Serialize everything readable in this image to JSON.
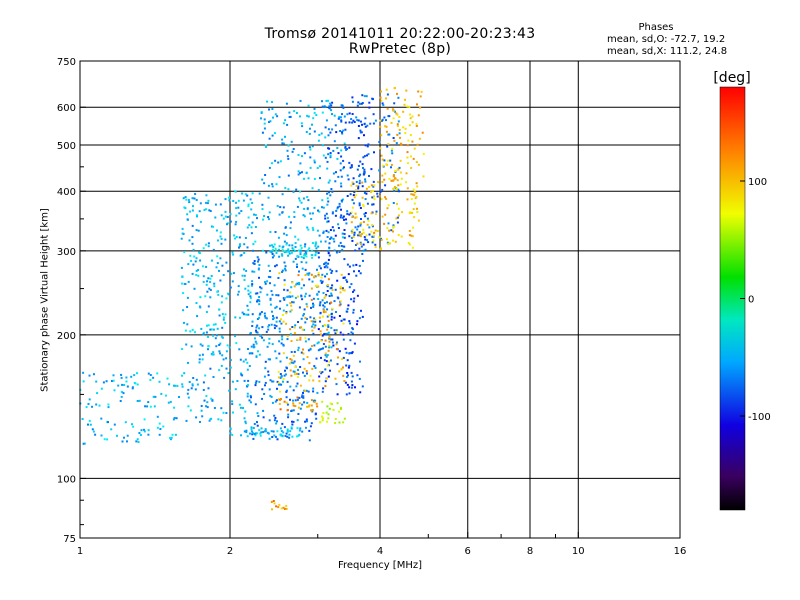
{
  "chart_data": {
    "type": "scatter",
    "title_line1": "Tromsø 20141011 20:22:00-20:23:43",
    "title_line2": "RwPretec (8p)",
    "xlabel": "Frequency [MHz]",
    "ylabel": "Stationary phase Virtual Height [km]",
    "x_scale": "log",
    "y_scale": "log",
    "xlim": [
      1,
      16
    ],
    "ylim": [
      75,
      750
    ],
    "x_ticks": [
      1,
      2,
      4,
      6,
      8,
      10,
      16
    ],
    "x_tick_labels": [
      "1",
      "2",
      "4",
      "6",
      "8",
      "10",
      "16"
    ],
    "y_ticks": [
      75,
      100,
      200,
      300,
      400,
      500,
      600,
      750
    ],
    "y_tick_labels": [
      "75",
      "100",
      "200",
      "300",
      "400",
      "500",
      "600",
      "750"
    ],
    "grid": true,
    "phases": {
      "title": "Phases",
      "o_label": "mean, sd,O: -72.7, 19.2",
      "x_label": "mean, sd,X: 111.2, 24.8"
    },
    "colorbar": {
      "label": "[deg]",
      "ticks": [
        -100,
        0,
        100
      ],
      "tick_labels": [
        "-100",
        "0",
        "100"
      ],
      "range": [
        -180,
        180
      ],
      "colormap": "rainbow"
    },
    "series": [
      {
        "clusters": [
          {
            "f": [
              1.0,
              1.6
            ],
            "h": [
              118,
              135
            ],
            "phase": -80,
            "n": 50
          },
          {
            "f": [
              1.0,
              1.6
            ],
            "h": [
              140,
              168
            ],
            "phase": -78,
            "n": 70
          },
          {
            "f": [
              1.6,
              2.2
            ],
            "h": [
              130,
              180
            ],
            "phase": -85,
            "n": 90
          },
          {
            "f": [
              1.6,
              2.3
            ],
            "h": [
              180,
              400
            ],
            "phase": -80,
            "n": 300
          },
          {
            "f": [
              2.2,
              3.0
            ],
            "h": [
              120,
              180
            ],
            "phase": -100,
            "n": 150
          },
          {
            "f": [
              2.2,
              3.2
            ],
            "h": [
              180,
              300
            ],
            "phase": -95,
            "n": 260
          },
          {
            "f": [
              2.3,
              3.4
            ],
            "h": [
              300,
              630
            ],
            "phase": -85,
            "n": 240
          },
          {
            "f": [
              3.0,
              3.7
            ],
            "h": [
              150,
              300
            ],
            "phase": -115,
            "n": 160
          },
          {
            "f": [
              3.1,
              3.8
            ],
            "h": [
              300,
              630
            ],
            "phase": -110,
            "n": 170
          },
          {
            "f": [
              3.6,
              4.4
            ],
            "h": [
              300,
              640
            ],
            "phase": -105,
            "n": 100
          },
          {
            "f": [
              2.0,
              2.8
            ],
            "h": [
              122,
              128
            ],
            "phase": -80,
            "n": 50
          },
          {
            "f": [
              2.4,
              3.0
            ],
            "h": [
              290,
              310
            ],
            "phase": -70,
            "n": 60
          }
        ]
      },
      {
        "clusters": [
          {
            "f": [
              2.5,
              3.4
            ],
            "h": [
              150,
              270
            ],
            "phase": 110,
            "n": 130
          },
          {
            "f": [
              3.5,
              4.8
            ],
            "h": [
              300,
              420
            ],
            "phase": 105,
            "n": 120
          },
          {
            "f": [
              4.0,
              4.9
            ],
            "h": [
              420,
              660
            ],
            "phase": 108,
            "n": 100
          },
          {
            "f": [
              2.5,
              3.0
            ],
            "h": [
              138,
              148
            ],
            "phase": 120,
            "n": 25
          },
          {
            "f": [
              3.0,
              3.4
            ],
            "h": [
              128,
              145
            ],
            "phase": 70,
            "n": 25
          },
          {
            "f": [
              2.4,
              2.6
            ],
            "h": [
              86,
              90
            ],
            "phase": 120,
            "n": 12
          }
        ]
      }
    ]
  }
}
